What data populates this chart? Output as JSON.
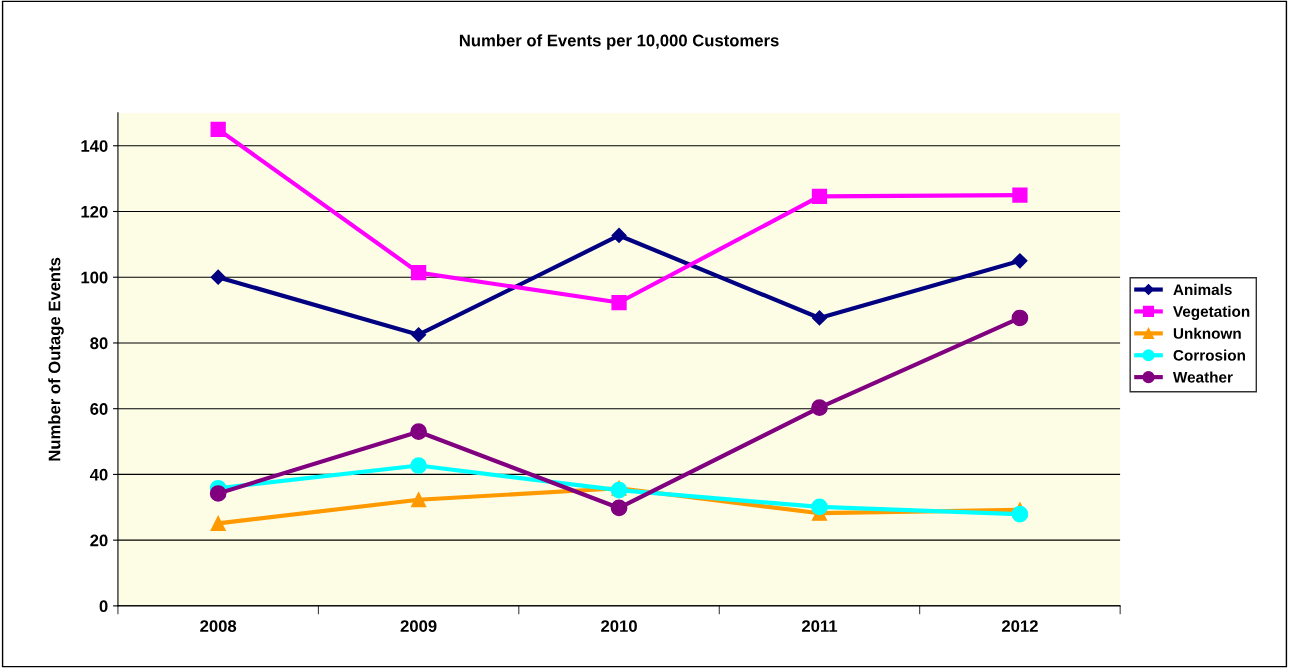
{
  "chart_data": {
    "type": "line",
    "title": "Number of Events per 10,000 Customers",
    "ylabel": "Number of Outage Events",
    "categories": [
      "2008",
      "2009",
      "2010",
      "2011",
      "2012"
    ],
    "series": [
      {
        "name": "Animals",
        "color": "#000080",
        "marker": "diamond",
        "values": [
          100,
          82.5,
          112.7,
          87.6,
          105
        ]
      },
      {
        "name": "Vegetation",
        "color": "#ff00ff",
        "marker": "square",
        "values": [
          145,
          101.4,
          92.3,
          124.6,
          125
        ]
      },
      {
        "name": "Unknown",
        "color": "#ff9900",
        "marker": "triangle",
        "values": [
          25.1,
          32.3,
          35.8,
          28.2,
          29.2
        ]
      },
      {
        "name": "Corrosion",
        "color": "#00ffff",
        "marker": "circle",
        "values": [
          35.8,
          42.7,
          35.2,
          30.1,
          27.9
        ]
      },
      {
        "name": "Weather",
        "color": "#800080",
        "marker": "circle",
        "values": [
          34.2,
          53,
          29.8,
          60.3,
          87.6
        ]
      }
    ],
    "ylim": [
      0,
      150
    ],
    "yticks": [
      0,
      20,
      40,
      60,
      80,
      100,
      120,
      140
    ],
    "grid": "y",
    "legend": "right",
    "line_style": "solid"
  }
}
